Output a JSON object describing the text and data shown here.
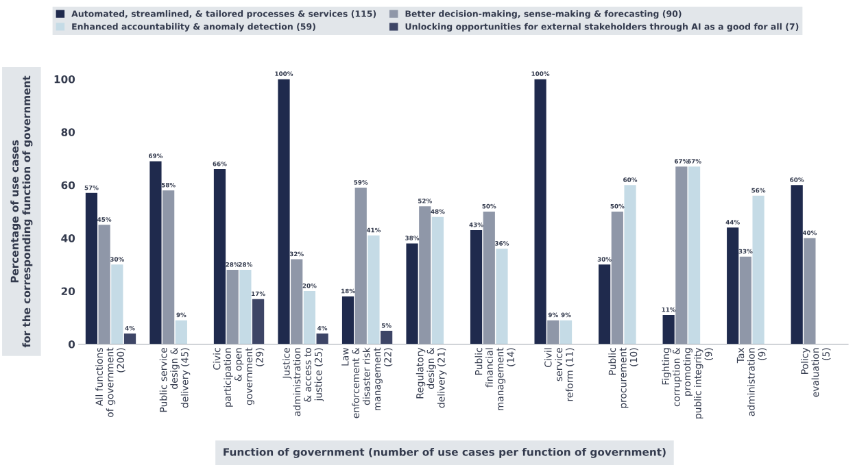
{
  "chart_data": {
    "type": "bar",
    "xlabel": "Function of government (number of use cases per function of government)",
    "ylabel": "Percentage of use cases\nfor the corresponding function of government",
    "categories": [
      "All functions\nof government\n(200)",
      "Public service\ndesign &\ndelivery (45)",
      "Civic\nparticipation\n& open\ngovernment\n(29)",
      "Justice\nadministration\n& access to\njustice (25)",
      "Law\nenforcement &\ndisaster risk\nmanagement\n(22)",
      "Regulatory\ndesign &\ndelivery (21)",
      "Public\nfinancial\nmanagement\n(14)",
      "Civil\nservice\nreform (11)",
      "Public\nprocurement\n(10)",
      "Fighting\ncorruption &\npromoting\npublic integrity\n(9)",
      "Tax\nadministration\n(9)",
      "Policy\nevaluation\n(5)"
    ],
    "series": [
      {
        "name": "Automated, streamlined, & tailored processes & services (115)",
        "color": "#1f2a4d",
        "values": [
          57,
          69,
          66,
          100,
          18,
          38,
          43,
          100,
          30,
          11,
          44,
          60
        ],
        "value_labels": [
          "57%",
          "69%",
          "66%",
          "100%",
          "18%",
          "38%",
          "43%",
          "100%",
          "30%",
          "11%",
          "44%",
          "60%"
        ]
      },
      {
        "name": "Better decision-making, sense-making & forecasting (90)",
        "color": "#8f97a8",
        "values": [
          45,
          58,
          28,
          32,
          59,
          52,
          50,
          9,
          50,
          67,
          33,
          40
        ],
        "value_labels": [
          "45%",
          "58%",
          "28%",
          "32%",
          "59%",
          "52%",
          "50%",
          "9%",
          "50%",
          "67%",
          "33%",
          "40%"
        ]
      },
      {
        "name": "Enhanced accountability & anomaly detection (59)",
        "color": "#c5dbe6",
        "values": [
          30,
          9,
          28,
          20,
          41,
          48,
          36,
          9,
          60,
          67,
          56,
          null
        ],
        "value_labels": [
          "30%",
          "9%",
          "28%",
          "20%",
          "41%",
          "48%",
          "36%",
          "9%",
          "60%",
          "67%",
          "56%",
          null
        ]
      },
      {
        "name": "Unlocking opportunities for external stakeholders through AI as a good for all (7)",
        "color": "#3d4566",
        "values": [
          4,
          null,
          17,
          4,
          5,
          null,
          null,
          null,
          null,
          null,
          null,
          null
        ],
        "value_labels": [
          "4%",
          null,
          "17%",
          "4%",
          "5%",
          null,
          null,
          null,
          null,
          null,
          null,
          null
        ]
      }
    ],
    "ylim": [
      0,
      100
    ],
    "yticks": [
      0,
      20,
      40,
      60,
      80,
      100
    ],
    "grid": false,
    "legend": "top"
  }
}
